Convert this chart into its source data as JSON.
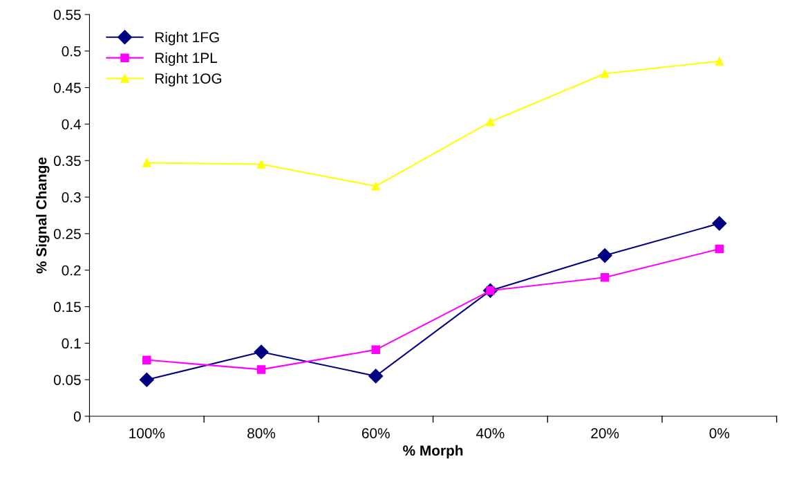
{
  "chart_data": {
    "type": "line",
    "xlabel": "% Morph",
    "ylabel": "% Signal Change",
    "categories": [
      "100%",
      "80%",
      "60%",
      "40%",
      "20%",
      "0%"
    ],
    "series": [
      {
        "name": "Right 1FG",
        "color": "#000080",
        "marker": "diamond",
        "values": [
          0.05,
          0.088,
          0.055,
          0.172,
          0.22,
          0.264
        ]
      },
      {
        "name": "Right 1PL",
        "color": "#ff00ff",
        "marker": "square",
        "values": [
          0.077,
          0.064,
          0.091,
          0.172,
          0.19,
          0.229
        ]
      },
      {
        "name": "Right 1OG",
        "color": "#ffff00",
        "marker": "triangle",
        "values": [
          0.347,
          0.345,
          0.315,
          0.403,
          0.469,
          0.486
        ]
      }
    ],
    "ylim": [
      0,
      0.55
    ],
    "yticks": [
      0,
      0.05,
      0.1,
      0.15,
      0.2,
      0.25,
      0.3,
      0.35,
      0.4,
      0.45,
      0.5,
      0.55
    ],
    "grid": false,
    "legend": "top left",
    "line_style": "solid"
  }
}
